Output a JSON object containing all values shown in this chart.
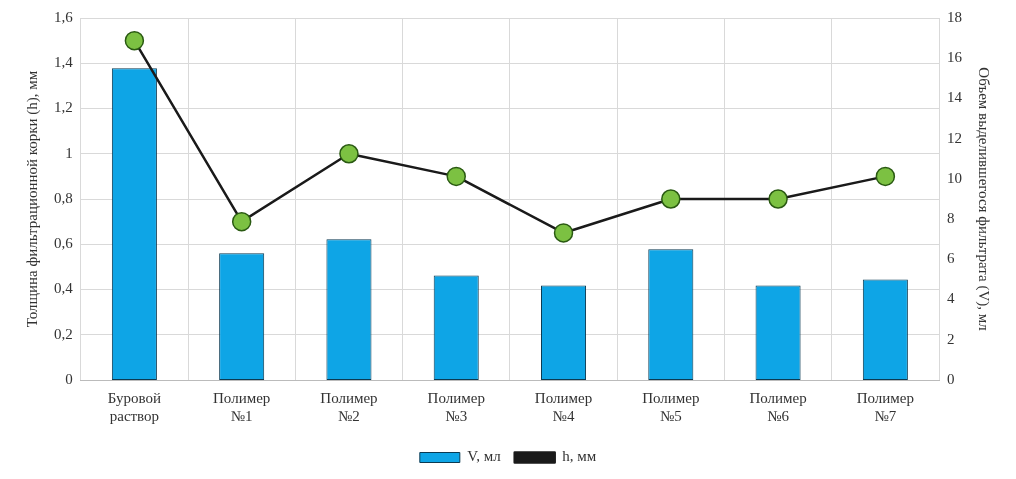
{
  "chart_data": {
    "type": "bar",
    "categories": [
      [
        "Буровой",
        "раствор"
      ],
      [
        "Полимер",
        "№1"
      ],
      [
        "Полимер",
        "№2"
      ],
      [
        "Полимер",
        "№3"
      ],
      [
        "Полимер",
        "№4"
      ],
      [
        "Полимер",
        "№5"
      ],
      [
        "Полимер",
        "№6"
      ],
      [
        "Полимер",
        "№7"
      ]
    ],
    "ylabel": "Толщина фильтрационной корки (h), мм",
    "y2label": "Объем выделившегося фильтрата (V), мл",
    "series": [
      {
        "name": "V, мл",
        "axis": "y2",
        "color": "#0ea5e6",
        "values": [
          15.5,
          6.3,
          7.0,
          5.2,
          4.7,
          6.5,
          4.7,
          5.0
        ]
      },
      {
        "name": "h, мм",
        "type": "line",
        "axis": "y",
        "color": "#1a1a1a",
        "values": [
          1.5,
          0.7,
          1.0,
          0.9,
          0.65,
          0.8,
          0.8,
          0.9
        ]
      }
    ],
    "ylim": [
      0,
      1.6
    ],
    "yticks": [
      0,
      {
        "value": 0.2,
        "label": "0,2"
      },
      {
        "value": 0.4,
        "label": "0,4"
      },
      {
        "value": 0.6,
        "label": "0,6"
      },
      {
        "value": 0.8,
        "label": "0,8"
      },
      1,
      {
        "value": 1.2,
        "label": "1,2"
      },
      {
        "value": 1.4,
        "label": "1,4"
      },
      {
        "value": 1.6,
        "label": "1,6"
      }
    ],
    "y2lim": [
      0,
      18
    ],
    "y2ticks": [
      0,
      2,
      4,
      6,
      8,
      10,
      12,
      14,
      16,
      18
    ],
    "grid": true,
    "legend": "bottom",
    "marker": "circle",
    "line_style": "solid"
  }
}
